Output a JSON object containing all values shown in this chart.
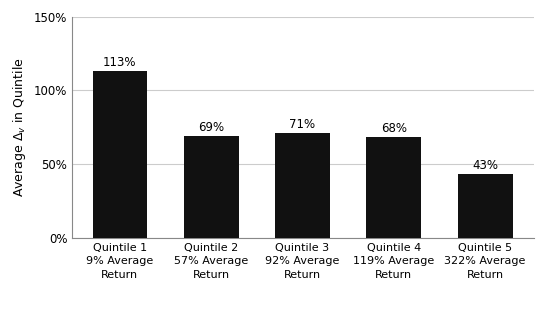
{
  "categories": [
    "Quintile 1\n9% Average\nReturn",
    "Quintile 2\n57% Average\nReturn",
    "Quintile 3\n92% Average\nReturn",
    "Quintile 4\n119% Average\nReturn",
    "Quintile 5\n322% Average\nReturn"
  ],
  "values": [
    113,
    69,
    71,
    68,
    43
  ],
  "bar_color": "#111111",
  "bar_labels": [
    "113%",
    "69%",
    "71%",
    "68%",
    "43%"
  ],
  "ylabel": "Average $\\Delta_v$ in Quintile",
  "ylim": [
    0,
    150
  ],
  "yticks": [
    0,
    50,
    100,
    150
  ],
  "ytick_labels": [
    "0%",
    "50%",
    "100%",
    "150%"
  ],
  "grid_color": "#cccccc",
  "background_color": "#ffffff",
  "bar_label_fontsize": 8.5,
  "ylabel_fontsize": 9,
  "xlabel_fontsize": 8,
  "tick_fontsize": 8.5
}
